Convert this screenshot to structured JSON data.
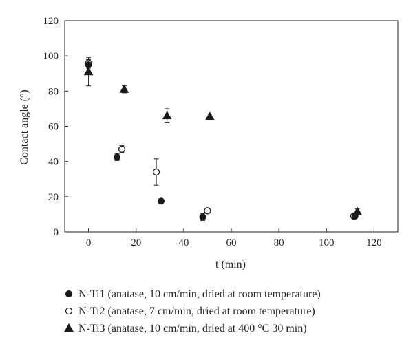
{
  "chart_data": {
    "type": "scatter",
    "title": "",
    "xlabel": "t (min)",
    "ylabel": "Contact angle (°)",
    "xlim": [
      -10,
      130
    ],
    "ylim": [
      0,
      120
    ],
    "xticks": [
      0,
      20,
      40,
      60,
      80,
      100,
      120
    ],
    "yticks": [
      0,
      20,
      40,
      60,
      80,
      100,
      120
    ],
    "grid": false,
    "legend_position": "bottom",
    "series": [
      {
        "name": "N-Ti1 (anatase, 10 cm/min, dried at room temperature)",
        "marker": "filled-circle",
        "color": "#1a1a1a",
        "points": [
          {
            "x": 0,
            "y": 95,
            "err": 2
          },
          {
            "x": 12,
            "y": 42.5,
            "err": 2
          },
          {
            "x": 30.5,
            "y": 17.5,
            "err": 1
          },
          {
            "x": 48,
            "y": 8.5,
            "err": 2
          },
          {
            "x": 112,
            "y": 9,
            "err": 1
          }
        ]
      },
      {
        "name": "N-Ti2 (anatase, 7 cm/min, dried at room temperature)",
        "marker": "open-circle",
        "color": "#1a1a1a",
        "points": [
          {
            "x": 0,
            "y": 96,
            "err": 2
          },
          {
            "x": 14,
            "y": 47,
            "err": 2
          },
          {
            "x": 28.5,
            "y": 34,
            "err": 7.5
          },
          {
            "x": 50,
            "y": 12,
            "err": 1
          },
          {
            "x": 111.5,
            "y": 9,
            "err": 1
          }
        ]
      },
      {
        "name": "N-Ti3 (anatase, 10 cm/min, dried at 400 °C 30 min)",
        "marker": "filled-triangle",
        "color": "#1a1a1a",
        "points": [
          {
            "x": 0,
            "y": 91,
            "err": 8
          },
          {
            "x": 15,
            "y": 81,
            "err": 2
          },
          {
            "x": 33,
            "y": 66,
            "err": 4
          },
          {
            "x": 51,
            "y": 65.5,
            "err": 1.5
          },
          {
            "x": 113,
            "y": 11.5,
            "err": 1.5
          }
        ]
      }
    ]
  }
}
